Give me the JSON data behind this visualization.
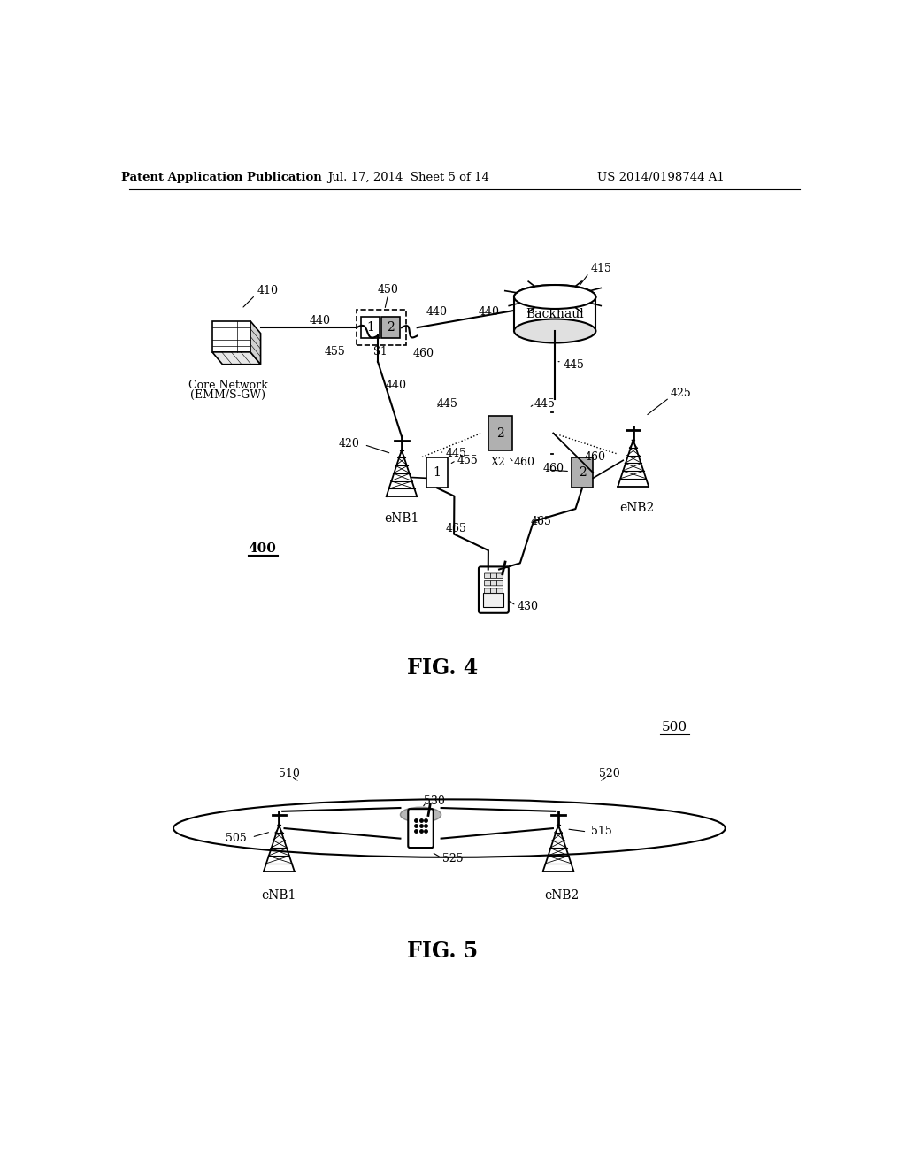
{
  "background_color": "#ffffff",
  "header_text": "Patent Application Publication",
  "header_date": "Jul. 17, 2014  Sheet 5 of 14",
  "header_patent": "US 2014/0198744 A1"
}
